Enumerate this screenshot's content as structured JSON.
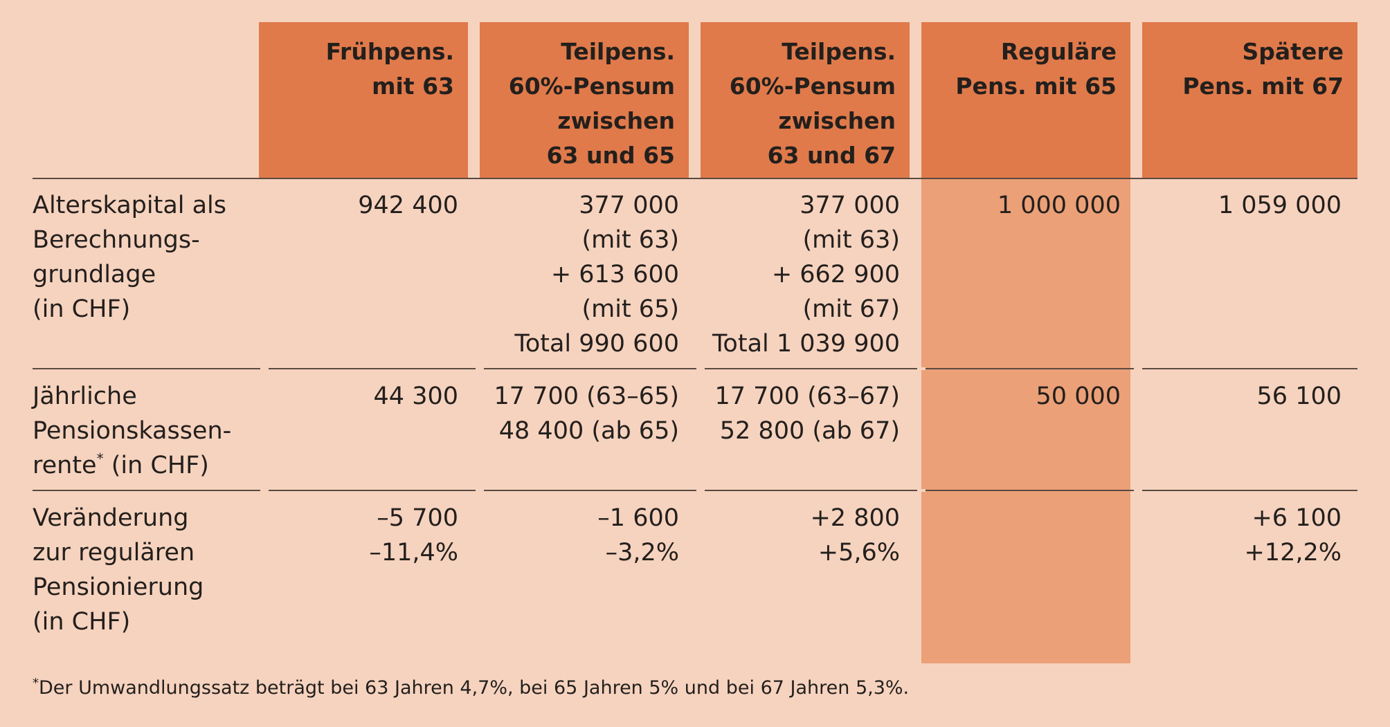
{
  "columns": [
    {
      "lines": [
        "Frühpens.",
        "mit 63"
      ]
    },
    {
      "lines": [
        "Teilpens.",
        "60%-Pensum",
        "zwischen",
        "63 und 65"
      ]
    },
    {
      "lines": [
        "Teilpens.",
        "60%-Pensum",
        "zwischen",
        "63 und 67"
      ]
    },
    {
      "lines": [
        "Reguläre",
        "Pens. mit 65"
      ]
    },
    {
      "lines": [
        "Spätere",
        "Pens. mit 67"
      ]
    }
  ],
  "rows": [
    {
      "label": [
        "Alterskapital als",
        "Berechnungs-",
        "grundlage",
        "(in CHF)"
      ],
      "label_sup": "",
      "cells": [
        [
          "942 400"
        ],
        [
          "377 000",
          "(mit 63)",
          "+ 613 600",
          "(mit 65)",
          "Total 990 600"
        ],
        [
          "377 000",
          "(mit 63)",
          "+ 662 900",
          "(mit 67)",
          "Total 1 039 900"
        ],
        [
          "1 000 000"
        ],
        [
          "1 059 000"
        ]
      ]
    },
    {
      "label": [
        "Jährliche",
        "Pensionskassen-",
        "rente",
        " (in CHF)"
      ],
      "label_sup": "*",
      "cells": [
        [
          "44 300"
        ],
        [
          "17 700 (63–65)",
          "48 400 (ab 65)"
        ],
        [
          "17 700 (63–67)",
          "52 800 (ab 67)"
        ],
        [
          "50 000"
        ],
        [
          "56 100"
        ]
      ]
    },
    {
      "label": [
        "Veränderung",
        "zur regulären",
        "Pensionierung",
        "(in CHF)"
      ],
      "label_sup": "",
      "cells": [
        [
          "–5 700",
          "–11,4%"
        ],
        [
          "–1 600",
          "–3,2%"
        ],
        [
          "+2 800",
          "+5,6%"
        ],
        [],
        [
          "+6 100",
          "+12,2%"
        ]
      ]
    }
  ],
  "footnote": {
    "marker": "*",
    "text": "Der Umwandlungssatz beträgt bei 63 Jahren 4,7%, bei 65 Jahren 5% und bei 67 Jahren 5,3%."
  },
  "colors": {
    "background": "#f6d3bf",
    "header_fill": "#e07a4b",
    "highlight_column": "#eba077",
    "rule": "#5a4a40"
  }
}
